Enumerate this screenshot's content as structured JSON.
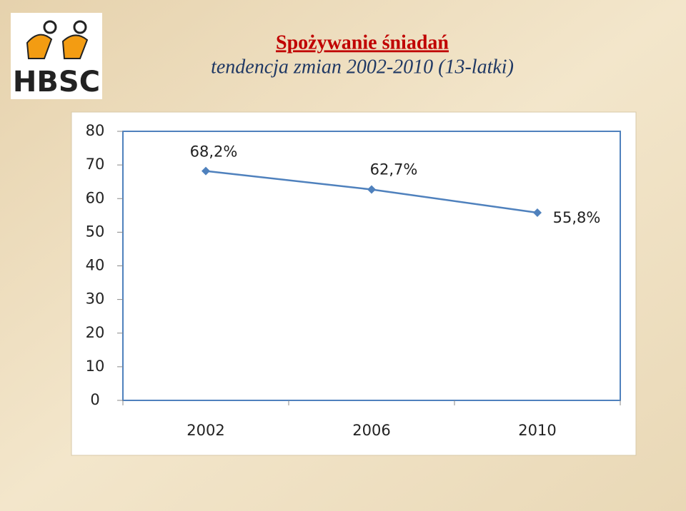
{
  "logo": "HBSC",
  "chart_data": {
    "type": "line",
    "title": "Spożywanie śniadań",
    "subtitle": "tendencja zmian 2002-2010 (13-latki)",
    "categories": [
      "2002",
      "2006",
      "2010"
    ],
    "values": [
      68.2,
      62.7,
      55.8
    ],
    "value_labels": [
      "68,2%",
      "62,7%",
      "55,8%"
    ],
    "color": "#4f81bd",
    "ylim": [
      0,
      80
    ],
    "yticks": [
      0,
      10,
      20,
      30,
      40,
      50,
      60,
      70,
      80
    ],
    "grid": false
  }
}
